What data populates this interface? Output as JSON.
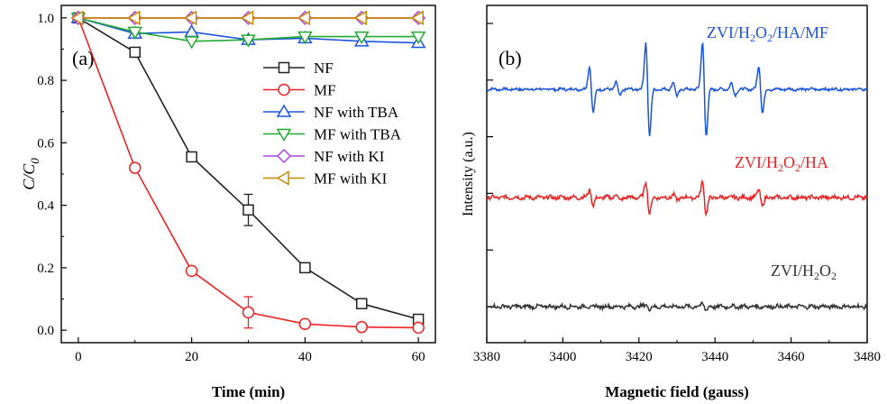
{
  "chart_data": [
    {
      "type": "line",
      "panel_label": "(a)",
      "xlabel": "Time (min)",
      "ylabel_main": "C/C",
      "ylabel_sub": "0",
      "xlim": [
        -3,
        63
      ],
      "ylim": [
        -0.04,
        1.04
      ],
      "xticks": [
        0,
        20,
        40,
        60
      ],
      "xtick_labels": [
        "0",
        "20",
        "40",
        "60"
      ],
      "yticks": [
        0.0,
        0.2,
        0.4,
        0.6,
        0.8,
        1.0
      ],
      "ytick_labels": [
        "0.0",
        "0.2",
        "0.4",
        "0.6",
        "0.8",
        "1.0"
      ],
      "legend_position": "right-middle",
      "x": [
        0,
        10,
        20,
        30,
        40,
        50,
        60
      ],
      "series": [
        {
          "name": "NF",
          "marker": "square",
          "color": "#222222",
          "values": [
            1.0,
            0.89,
            0.555,
            0.385,
            0.2,
            0.085,
            0.035
          ],
          "errors": [
            0,
            0.01,
            0.01,
            0.05,
            0.01,
            0.01,
            0.005
          ]
        },
        {
          "name": "MF",
          "marker": "circle",
          "color": "#ee2222",
          "values": [
            1.0,
            0.52,
            0.19,
            0.057,
            0.02,
            0.01,
            0.008
          ],
          "errors": [
            0,
            0.01,
            0.01,
            0.05,
            0.005,
            0.005,
            0.003
          ]
        },
        {
          "name": "NF with TBA",
          "marker": "triangle-up",
          "color": "#1a55dd",
          "values": [
            1.0,
            0.95,
            0.955,
            0.93,
            0.935,
            0.925,
            0.92
          ],
          "errors": [
            0,
            0,
            0,
            0,
            0,
            0,
            0
          ]
        },
        {
          "name": "MF with TBA",
          "marker": "triangle-down",
          "color": "#22aa33",
          "values": [
            1.0,
            0.955,
            0.925,
            0.93,
            0.94,
            0.94,
            0.94
          ],
          "errors": [
            0,
            0,
            0,
            0,
            0,
            0,
            0
          ]
        },
        {
          "name": "NF with KI",
          "marker": "diamond",
          "color": "#aa44dd",
          "values": [
            1.0,
            1.0,
            1.0,
            1.0,
            1.0,
            1.0,
            1.0
          ],
          "errors": [
            0,
            0,
            0,
            0,
            0,
            0,
            0
          ]
        },
        {
          "name": "MF with KI",
          "marker": "triangle-left",
          "color": "#cc8800",
          "values": [
            1.0,
            1.0,
            1.0,
            1.0,
            1.0,
            1.0,
            1.0
          ],
          "errors": [
            0,
            0,
            0,
            0,
            0,
            0,
            0
          ]
        }
      ]
    },
    {
      "type": "line",
      "panel_label": "(b)",
      "xlabel": "Magnetic field (gauss)",
      "ylabel": "Intensity (a.u.)",
      "xlim": [
        3380,
        3480
      ],
      "xticks": [
        3380,
        3400,
        3420,
        3440,
        3460,
        3480
      ],
      "xtick_labels": [
        "3380",
        "3400",
        "3420",
        "3440",
        "3460",
        "3480"
      ],
      "y_ticks_unlabeled": 6,
      "series": [
        {
          "name": "ZVI/H2O2/HA/MF",
          "label_parts": [
            [
              "ZVI/H",
              ""
            ],
            [
              "2",
              "sub"
            ],
            [
              "O",
              ""
            ],
            [
              "2",
              "sub"
            ],
            [
              "/HA/MF",
              ""
            ]
          ],
          "color": "#1a55dd",
          "baseline": 1.0,
          "peaks": [
            {
              "center": 3407.5,
              "amp": 1.0
            },
            {
              "center": 3422.3,
              "amp": 2.0
            },
            {
              "center": 3437.2,
              "amp": 2.0
            },
            {
              "center": 3452.0,
              "amp": 1.0
            },
            {
              "center": 3414.5,
              "amp": 0.3
            },
            {
              "center": 3429.5,
              "amp": 0.3
            },
            {
              "center": 3444.8,
              "amp": 0.25
            }
          ],
          "noise": 0.035
        },
        {
          "name": "ZVI/H2O2/HA",
          "label_parts": [
            [
              "ZVI/H",
              ""
            ],
            [
              "2",
              "sub"
            ],
            [
              "O",
              ""
            ],
            [
              "2",
              "sub"
            ],
            [
              "/HA",
              ""
            ]
          ],
          "color": "#ee2222",
          "baseline": 0.0,
          "peaks": [
            {
              "center": 3407.5,
              "amp": 0.35
            },
            {
              "center": 3422.3,
              "amp": 0.7
            },
            {
              "center": 3437.2,
              "amp": 0.7
            },
            {
              "center": 3452.0,
              "amp": 0.35
            },
            {
              "center": 3414.5,
              "amp": 0.15
            },
            {
              "center": 3429.5,
              "amp": 0.12
            }
          ],
          "noise": 0.05
        },
        {
          "name": "ZVI/H2O2",
          "label_parts": [
            [
              "ZVI/H",
              ""
            ],
            [
              "2",
              "sub"
            ],
            [
              "O",
              ""
            ],
            [
              "2",
              "sub"
            ]
          ],
          "color": "#333333",
          "baseline": -1.0,
          "peaks": [
            {
              "center": 3422.3,
              "amp": 0.12
            },
            {
              "center": 3437.2,
              "amp": 0.15
            }
          ],
          "noise": 0.05
        }
      ]
    }
  ]
}
